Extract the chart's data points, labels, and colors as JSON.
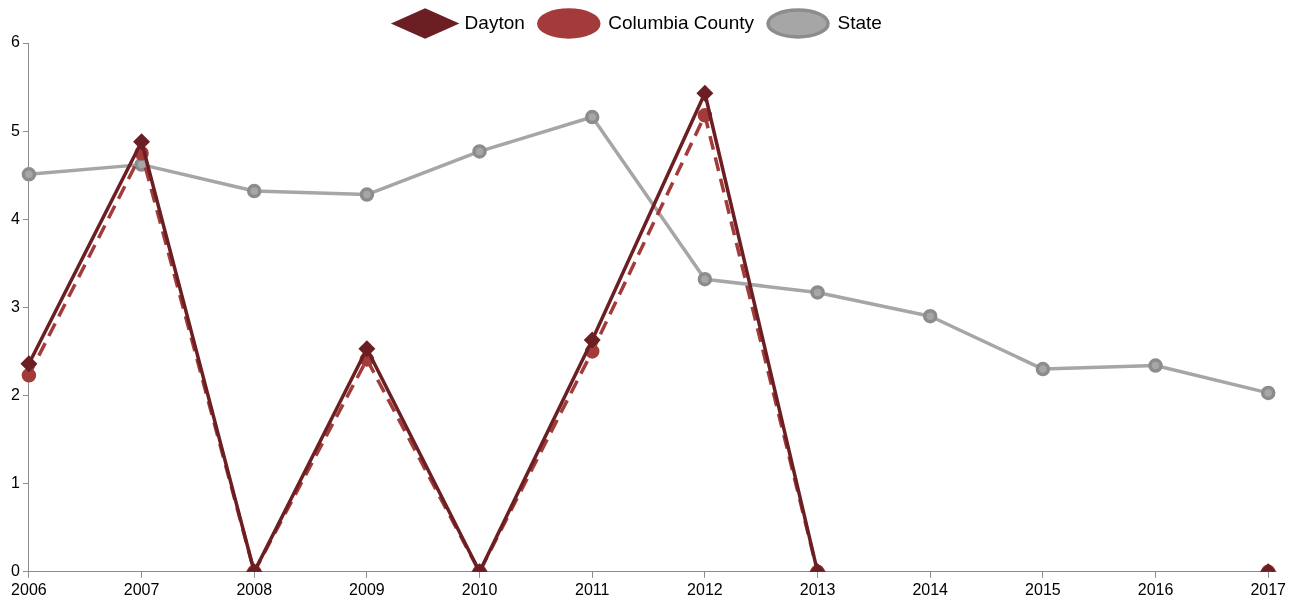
{
  "chart_data": {
    "type": "line",
    "categories": [
      "2006",
      "2007",
      "2008",
      "2009",
      "2010",
      "2011",
      "2012",
      "2013",
      "2014",
      "2015",
      "2016",
      "2017"
    ],
    "series": [
      {
        "name": "Dayton",
        "color": "#6b1f22",
        "marker": "diamond",
        "line_style": "solid",
        "values": [
          2.36,
          4.88,
          0,
          2.53,
          0,
          2.63,
          5.43,
          0,
          null,
          null,
          null,
          0
        ]
      },
      {
        "name": "Columbia County",
        "color": "#a33b3b",
        "marker": "circle",
        "line_style": "dashed",
        "values": [
          2.23,
          4.75,
          0,
          2.41,
          0,
          2.5,
          5.18,
          0,
          null,
          null,
          null,
          0
        ]
      },
      {
        "name": "State",
        "color": "#a6a6a6",
        "marker": "circle",
        "line_style": "solid",
        "values": [
          4.51,
          4.62,
          4.32,
          4.28,
          4.77,
          5.16,
          3.32,
          3.17,
          2.9,
          2.3,
          2.34,
          2.03
        ]
      }
    ],
    "ylim": [
      0,
      6
    ],
    "yticks": [
      0,
      1,
      2,
      3,
      4,
      5,
      6
    ],
    "grid": false,
    "legend": "top"
  }
}
